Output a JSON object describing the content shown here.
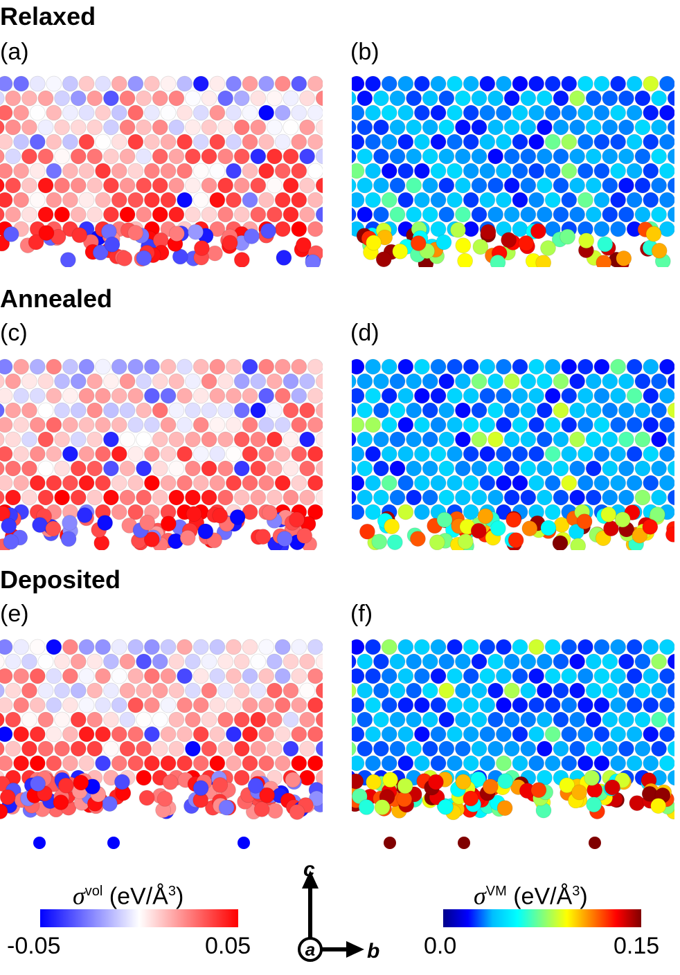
{
  "sections": {
    "relaxed": "Relaxed",
    "annealed": "Annealed",
    "deposited": "Deposited"
  },
  "panels": {
    "a": "(a)",
    "b": "(b)",
    "c": "(c)",
    "d": "(d)",
    "e": "(e)",
    "f": "(f)"
  },
  "colorbars": {
    "vol": {
      "symbol": "σ",
      "superscript": "vol",
      "unit_open": " (eV/Å",
      "unit_exp": "3",
      "unit_close": ")",
      "min": "-0.05",
      "max": "0.05",
      "colors": [
        "#0000ff",
        "#ffffff",
        "#ff0000"
      ]
    },
    "vm": {
      "symbol": "σ",
      "superscript": "VM",
      "unit_open": " (eV/Å",
      "unit_exp": "3",
      "unit_close": ")",
      "min": "0.0",
      "max": "0.15",
      "colors": [
        "#00008b",
        "#0000ff",
        "#00bfff",
        "#00ffff",
        "#7fff7f",
        "#ffff00",
        "#ff8000",
        "#ff0000",
        "#800000"
      ]
    }
  },
  "axes": {
    "c": "c",
    "a": "a",
    "b": "b"
  }
}
